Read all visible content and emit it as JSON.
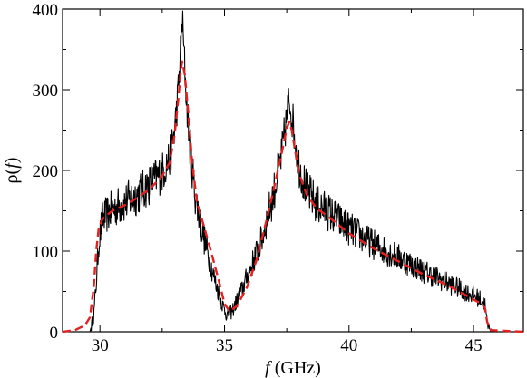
{
  "chart_data": {
    "type": "line",
    "title": "",
    "xlabel": {
      "symbol": "f",
      "unit": " (GHz)"
    },
    "ylabel": {
      "pre": "ρ(",
      "symbol": "f",
      "post": ")"
    },
    "xlim": [
      28.5,
      47.0
    ],
    "ylim": [
      0,
      400
    ],
    "xticks": [
      30,
      35,
      40,
      45
    ],
    "yticks": [
      0,
      100,
      200,
      300,
      400
    ],
    "xtick_labels": [
      "30",
      "35",
      "40",
      "45"
    ],
    "ytick_labels": [
      "0",
      "100",
      "200",
      "300",
      "400"
    ],
    "grid": false,
    "legend": "none",
    "series": [
      {
        "style": "solid",
        "color": "#000000",
        "noisy": true,
        "x": [
          28.5,
          29.6,
          29.75,
          29.85,
          29.95,
          30.1,
          30.5,
          31.0,
          31.5,
          32.0,
          32.5,
          32.8,
          33.0,
          33.15,
          33.25,
          33.3,
          33.35,
          33.45,
          33.6,
          33.8,
          34.0,
          34.3,
          34.6,
          34.9,
          35.1,
          35.3,
          35.6,
          36.0,
          36.5,
          37.0,
          37.3,
          37.5,
          37.6,
          37.7,
          37.85,
          38.0,
          38.3,
          38.7,
          39.2,
          40.0,
          41.0,
          42.0,
          43.0,
          44.0,
          45.0,
          45.3,
          45.45,
          45.55,
          45.7,
          47.0
        ],
        "y": [
          0,
          0,
          20,
          60,
          110,
          140,
          152,
          160,
          170,
          183,
          198,
          215,
          250,
          300,
          355,
          390,
          360,
          300,
          235,
          175,
          140,
          100,
          65,
          35,
          20,
          25,
          45,
          75,
          115,
          175,
          220,
          265,
          290,
          270,
          235,
          205,
          175,
          158,
          148,
          128,
          108,
          92,
          75,
          60,
          45,
          40,
          35,
          10,
          0,
          0
        ]
      },
      {
        "style": "dashed",
        "color": "#e62020",
        "noisy": false,
        "x": [
          28.5,
          29.0,
          29.4,
          29.6,
          29.75,
          29.85,
          29.95,
          30.1,
          30.5,
          31.0,
          31.5,
          32.0,
          32.5,
          32.8,
          33.0,
          33.15,
          33.25,
          33.3,
          33.4,
          33.55,
          33.7,
          33.9,
          34.2,
          34.5,
          34.8,
          35.0,
          35.2,
          35.5,
          35.9,
          36.3,
          36.7,
          37.0,
          37.3,
          37.5,
          37.6,
          37.7,
          37.85,
          38.0,
          38.3,
          38.7,
          39.2,
          40.0,
          41.0,
          42.0,
          43.0,
          44.0,
          45.0,
          45.3,
          45.45,
          45.55,
          45.7,
          47.0
        ],
        "y": [
          0,
          2,
          8,
          18,
          55,
          100,
          128,
          140,
          150,
          157,
          166,
          177,
          193,
          210,
          245,
          290,
          325,
          335,
          320,
          270,
          210,
          160,
          128,
          95,
          60,
          35,
          25,
          32,
          55,
          90,
          140,
          180,
          222,
          252,
          260,
          250,
          222,
          196,
          170,
          153,
          142,
          122,
          103,
          87,
          71,
          57,
          40,
          35,
          30,
          12,
          2,
          0
        ]
      }
    ]
  }
}
